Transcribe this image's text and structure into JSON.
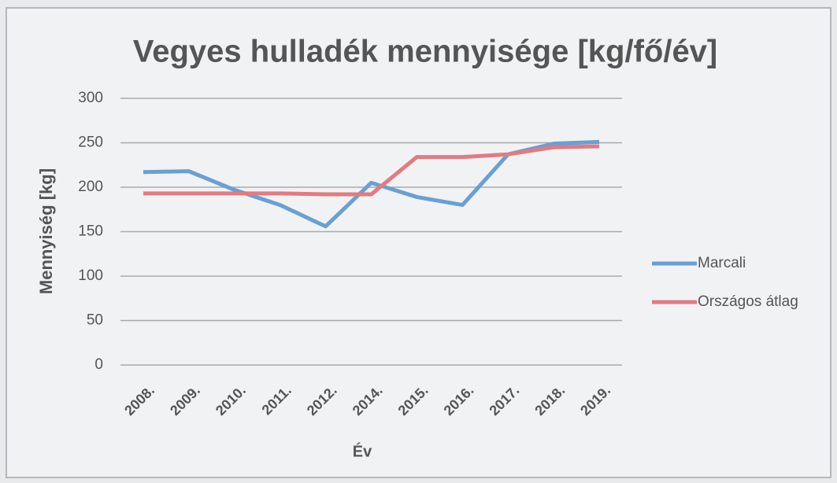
{
  "chart_data": {
    "type": "line",
    "title": "Vegyes hulladék mennyisége [kg/fő/év]",
    "x_label": "Év",
    "y_label": "Mennyiség [kg]",
    "categories": [
      "2008.",
      "2009.",
      "2010.",
      "2011.",
      "2012.",
      "2014.",
      "2015.",
      "2016.",
      "2017.",
      "2018.",
      "2019."
    ],
    "series": [
      {
        "name": "Marcali",
        "color": "#6a9fd3",
        "values": [
          217,
          218,
          197,
          180,
          156,
          205,
          189,
          180,
          237,
          249,
          251
        ]
      },
      {
        "name": "Országos átlag",
        "color": "#e27b80",
        "values": [
          193,
          193,
          193,
          193,
          192,
          192,
          234,
          234,
          237,
          245,
          246
        ]
      }
    ],
    "ylim": [
      0,
      300
    ],
    "yticks": [
      0,
      50,
      100,
      150,
      200,
      250,
      300
    ],
    "grid": true,
    "legend": "right"
  }
}
